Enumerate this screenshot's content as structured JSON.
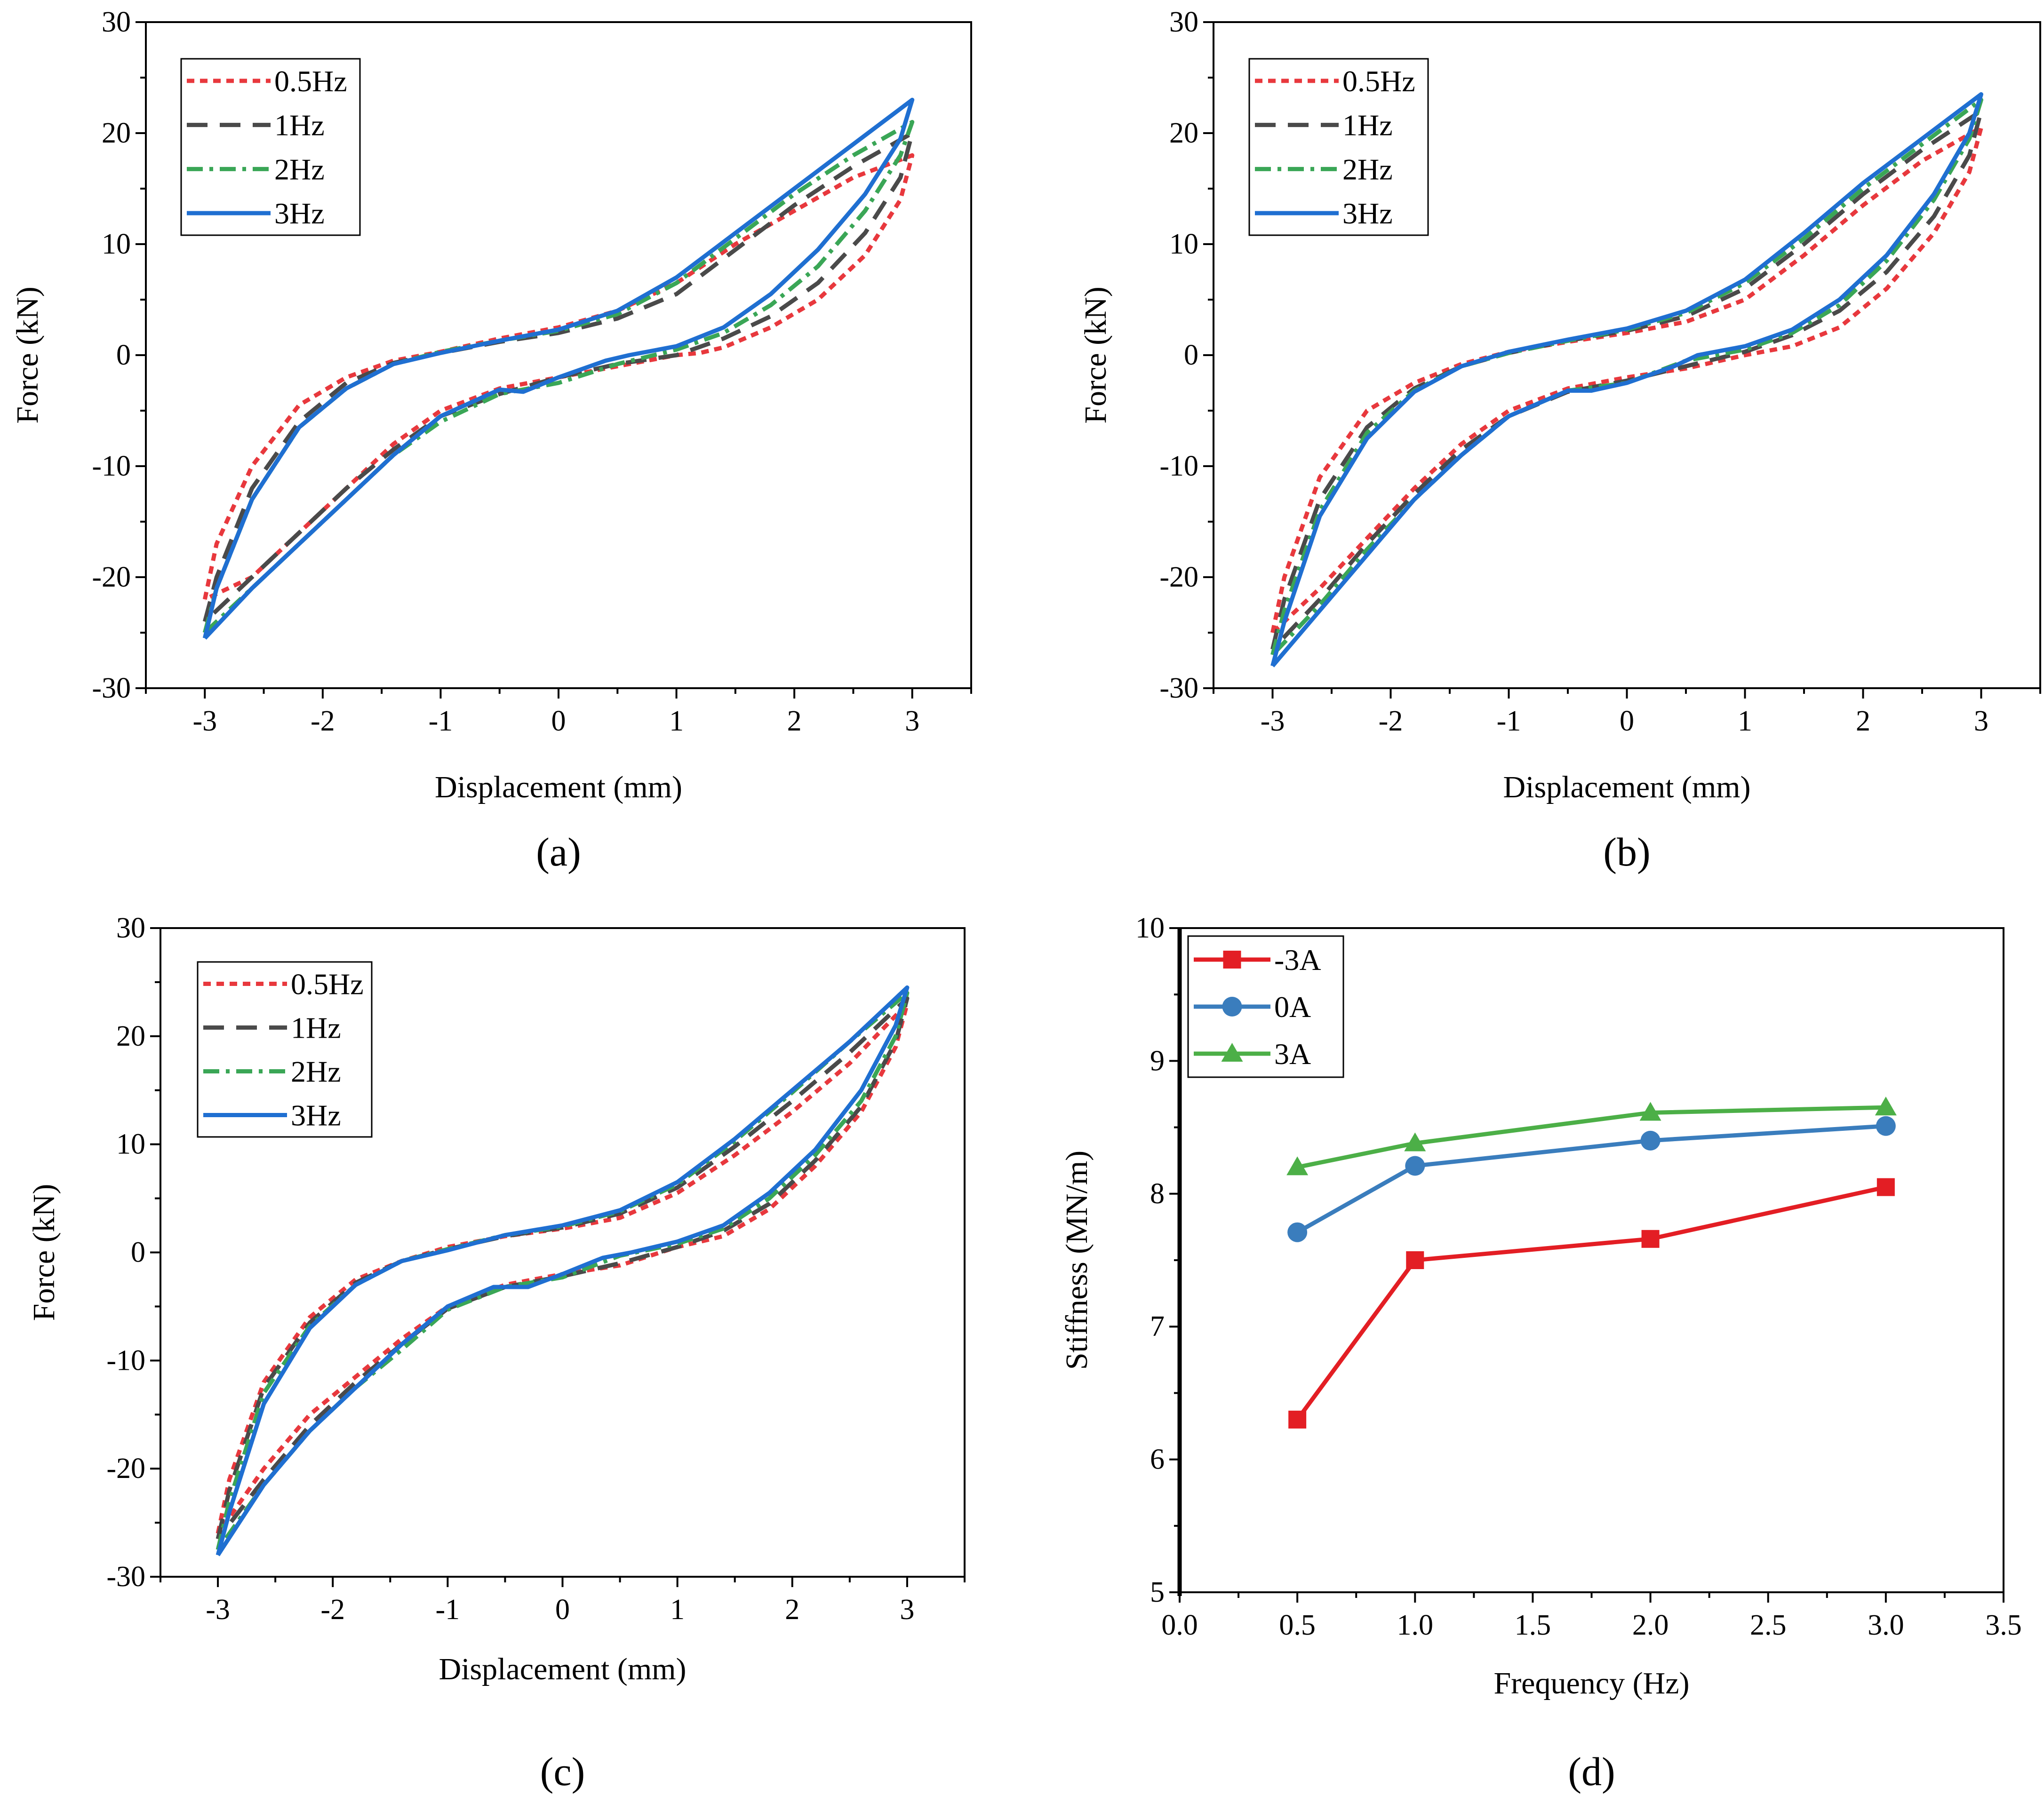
{
  "figure": {
    "panels": [
      "a",
      "b",
      "c",
      "d"
    ]
  },
  "chart_data": [
    {
      "id": "a",
      "type": "line",
      "panel_label": "(a)",
      "title": "",
      "xlabel": "Displacement (mm)",
      "ylabel": "Force (kN)",
      "xlim": [
        -3.5,
        3.5
      ],
      "ylim": [
        -30,
        30
      ],
      "xticks": [
        -3,
        -2,
        -1,
        0,
        1,
        2,
        3
      ],
      "xtick_labels": [
        "-3",
        "-2",
        "-1",
        "0",
        "1",
        "2",
        "3"
      ],
      "yticks": [
        -30,
        -20,
        -10,
        0,
        10,
        20,
        30
      ],
      "ytick_labels": [
        "-30",
        "-20",
        "-10",
        "0",
        "10",
        "20",
        "30"
      ],
      "grid": false,
      "legend_position": "top-left",
      "series": [
        {
          "name": "0.5Hz",
          "color": "#e8383d",
          "style": "dotted",
          "x": [
            -3,
            -2.9,
            -2.6,
            -2.2,
            -1.8,
            -1.4,
            -1,
            -0.5,
            0,
            0.5,
            1,
            1.5,
            2,
            2.5,
            3,
            2.9,
            2.6,
            2.2,
            1.8,
            1.4,
            1.2,
            1,
            0.5,
            0,
            -0.5,
            -1,
            -1.4,
            -1.8,
            -2.2,
            -2.6,
            -3
          ],
          "y": [
            -22,
            -17,
            -10,
            -4.5,
            -2,
            -0.5,
            0.3,
            1.5,
            2.5,
            4,
            6.5,
            10,
            13,
            16,
            18,
            14,
            9,
            5,
            2.5,
            0.7,
            0.2,
            0,
            -1,
            -2,
            -3,
            -5,
            -8,
            -12,
            -16,
            -20,
            -22
          ]
        },
        {
          "name": "1Hz",
          "color": "#4a4a4a",
          "style": "dashed",
          "x": [
            -3,
            -2.9,
            -2.6,
            -2.2,
            -1.8,
            -1.4,
            -1,
            -0.5,
            0,
            0.5,
            1,
            1.5,
            2,
            2.5,
            3,
            2.9,
            2.6,
            2.2,
            1.8,
            1.4,
            1,
            0.5,
            0,
            -0.5,
            -1,
            -1.4,
            -1.8,
            -2.2,
            -2.6,
            -3
          ],
          "y": [
            -24,
            -20,
            -12,
            -6,
            -2.5,
            -0.7,
            0.2,
            1.2,
            2,
            3.3,
            5.5,
            9.5,
            13.5,
            17,
            20,
            16,
            11,
            6.5,
            3.5,
            1.5,
            0,
            -0.8,
            -2,
            -3.5,
            -5.5,
            -8.5,
            -12,
            -16,
            -20,
            -24
          ]
        },
        {
          "name": "2Hz",
          "color": "#3aa656",
          "style": "dashdot",
          "x": [
            -3,
            -2.9,
            -2.6,
            -2.2,
            -1.8,
            -1.4,
            -1,
            -0.5,
            0,
            0.5,
            1,
            1.5,
            2,
            2.5,
            3,
            2.9,
            2.6,
            2.2,
            1.8,
            1.4,
            1,
            0.5,
            0,
            -0.5,
            -1,
            -1.4,
            -1.8,
            -2.2,
            -2.6,
            -3
          ],
          "y": [
            -25,
            -21,
            -13,
            -6.5,
            -3,
            -0.8,
            0.3,
            1.3,
            2.2,
            3.7,
            6.5,
            10.5,
            14.5,
            18,
            21,
            18,
            13,
            8,
            4.5,
            2,
            0.5,
            -0.8,
            -2.5,
            -3.5,
            -6,
            -9,
            -13,
            -17,
            -21,
            -25
          ]
        },
        {
          "name": "3Hz",
          "color": "#1f6fd1",
          "style": "solid",
          "x": [
            -3,
            -2.9,
            -2.6,
            -2.2,
            -1.8,
            -1.4,
            -1,
            -0.5,
            0,
            0.5,
            1,
            1.5,
            2,
            2.5,
            3,
            2.9,
            2.6,
            2.2,
            1.8,
            1.4,
            1,
            0.6,
            0.4,
            0,
            -0.3,
            -0.5,
            -1,
            -1.4,
            -1.8,
            -2.2,
            -2.6,
            -3
          ],
          "y": [
            -25.5,
            -21,
            -13,
            -6.5,
            -3,
            -0.8,
            0.2,
            1.3,
            2.3,
            4,
            7,
            11,
            15,
            19,
            23,
            19.5,
            14.5,
            9.5,
            5.5,
            2.5,
            0.8,
            0,
            -0.5,
            -2,
            -3.3,
            -3.1,
            -5.5,
            -9,
            -13,
            -17,
            -21,
            -25.5
          ]
        }
      ]
    },
    {
      "id": "b",
      "type": "line",
      "panel_label": "(b)",
      "title": "",
      "xlabel": "Displacement (mm)",
      "ylabel": "Force (kN)",
      "xlim": [
        -3.5,
        3.5
      ],
      "ylim": [
        -30,
        30
      ],
      "xticks": [
        -3,
        -2,
        -1,
        0,
        1,
        2,
        3
      ],
      "xtick_labels": [
        "-3",
        "-2",
        "-1",
        "0",
        "1",
        "2",
        "3"
      ],
      "yticks": [
        -30,
        -20,
        -10,
        0,
        10,
        20,
        30
      ],
      "ytick_labels": [
        "-30",
        "-20",
        "-10",
        "0",
        "10",
        "20",
        "30"
      ],
      "grid": false,
      "legend_position": "top-left",
      "series": [
        {
          "name": "0.5Hz",
          "color": "#e8383d",
          "style": "dotted",
          "x": [
            -3,
            -2.9,
            -2.6,
            -2.2,
            -1.8,
            -1.4,
            -1,
            -0.5,
            0,
            0.5,
            1,
            1.5,
            2,
            2.5,
            3,
            2.9,
            2.6,
            2.2,
            1.8,
            1.4,
            1,
            0.5,
            0,
            -0.5,
            -1,
            -1.4,
            -1.8,
            -2.2,
            -2.6,
            -3
          ],
          "y": [
            -25,
            -20,
            -11,
            -5,
            -2.5,
            -0.8,
            0.3,
            1.2,
            2,
            3,
            5,
            9,
            13.5,
            17.5,
            20.5,
            16.5,
            11,
            6,
            2.5,
            0.8,
            0,
            -1.2,
            -2,
            -3,
            -5,
            -8,
            -12,
            -16.5,
            -21,
            -25
          ]
        },
        {
          "name": "1Hz",
          "color": "#4a4a4a",
          "style": "dashed",
          "x": [
            -3,
            -2.9,
            -2.6,
            -2.2,
            -1.8,
            -1.4,
            -1,
            -0.5,
            0,
            0.5,
            1,
            1.5,
            2,
            2.5,
            3,
            2.9,
            2.6,
            2.2,
            1.8,
            1.4,
            1,
            0.5,
            0,
            -0.5,
            -1,
            -1.4,
            -1.8,
            -2.2,
            -2.6,
            -3
          ],
          "y": [
            -26.5,
            -22,
            -13,
            -6.5,
            -3,
            -1,
            0.2,
            1.3,
            2.2,
            3.5,
            6,
            10,
            14.5,
            18.5,
            22,
            18,
            12.5,
            7.5,
            4,
            1.8,
            0.3,
            -1,
            -2.3,
            -3.3,
            -5.5,
            -8.5,
            -12.5,
            -17,
            -22,
            -26.5
          ]
        },
        {
          "name": "2Hz",
          "color": "#3aa656",
          "style": "dashdot",
          "x": [
            -3,
            -2.9,
            -2.6,
            -2.2,
            -1.8,
            -1.4,
            -1,
            -0.5,
            0,
            0.5,
            1,
            1.5,
            2,
            2.5,
            3,
            2.9,
            2.6,
            2.2,
            1.8,
            1.4,
            1,
            0.5,
            0,
            -0.5,
            -1,
            -1.4,
            -1.8,
            -2.2,
            -2.6,
            -3
          ],
          "y": [
            -27,
            -23,
            -14,
            -7,
            -3.2,
            -1,
            0.2,
            1.3,
            2.3,
            3.8,
            6.5,
            10.5,
            15,
            19,
            23,
            19.5,
            14,
            8.5,
            4.5,
            2,
            0.5,
            -0.5,
            -2.5,
            -3.2,
            -5.5,
            -9,
            -13,
            -17.5,
            -22.5,
            -27
          ]
        },
        {
          "name": "3Hz",
          "color": "#1f6fd1",
          "style": "solid",
          "x": [
            -3,
            -2.9,
            -2.6,
            -2.2,
            -1.8,
            -1.4,
            -1,
            -0.5,
            0,
            0.5,
            1,
            1.5,
            2,
            2.5,
            3,
            2.9,
            2.6,
            2.2,
            1.8,
            1.4,
            1,
            0.6,
            0.4,
            0,
            -0.3,
            -0.5,
            -1,
            -1.4,
            -1.8,
            -2.2,
            -2.6,
            -3
          ],
          "y": [
            -28,
            -24,
            -14.5,
            -7.5,
            -3.3,
            -1,
            0.3,
            1.4,
            2.4,
            4,
            6.8,
            11,
            15.5,
            19.5,
            23.5,
            20,
            14.5,
            9,
            5,
            2.3,
            0.8,
            0,
            -1,
            -2.5,
            -3.2,
            -3.2,
            -5.5,
            -9,
            -13,
            -18,
            -23,
            -28
          ]
        }
      ]
    },
    {
      "id": "c",
      "type": "line",
      "panel_label": "(c)",
      "title": "",
      "xlabel": "Displacement (mm)",
      "ylabel": "Force (kN)",
      "xlim": [
        -3.5,
        3.5
      ],
      "ylim": [
        -30,
        30
      ],
      "xticks": [
        -3,
        -2,
        -1,
        0,
        1,
        2,
        3
      ],
      "xtick_labels": [
        "-3",
        "-2",
        "-1",
        "0",
        "1",
        "2",
        "3"
      ],
      "yticks": [
        -30,
        -20,
        -10,
        0,
        10,
        20,
        30
      ],
      "ytick_labels": [
        "-30",
        "-20",
        "-10",
        "0",
        "10",
        "20",
        "30"
      ],
      "grid": false,
      "legend_position": "top-left",
      "series": [
        {
          "name": "0.5Hz",
          "color": "#e8383d",
          "style": "dotted",
          "x": [
            -3,
            -2.9,
            -2.6,
            -2.2,
            -1.8,
            -1.4,
            -1,
            -0.5,
            0,
            0.5,
            1,
            1.5,
            2,
            2.5,
            3,
            2.9,
            2.6,
            2.2,
            1.8,
            1.4,
            1,
            0.5,
            0,
            -0.5,
            -1,
            -1.4,
            -1.8,
            -2.2,
            -2.6,
            -3
          ],
          "y": [
            -26,
            -21,
            -12,
            -6,
            -2.5,
            -0.8,
            0.5,
            1.5,
            2.2,
            3.2,
            5.5,
            9,
            13,
            17.5,
            23,
            19,
            13,
            8,
            4,
            1.5,
            0.5,
            -1.2,
            -2,
            -3,
            -5,
            -8,
            -11.5,
            -15,
            -20,
            -26
          ]
        },
        {
          "name": "1Hz",
          "color": "#4a4a4a",
          "style": "dashed",
          "x": [
            -3,
            -2.9,
            -2.6,
            -2.2,
            -1.8,
            -1.4,
            -1,
            -0.5,
            0,
            0.5,
            1,
            1.5,
            2,
            2.5,
            3,
            2.9,
            2.6,
            2.2,
            1.8,
            1.4,
            1,
            0.5,
            0,
            -0.5,
            -1,
            -1.4,
            -1.8,
            -2.2,
            -2.6,
            -3
          ],
          "y": [
            -26.5,
            -22,
            -12.5,
            -6.5,
            -2.8,
            -0.8,
            0.3,
            1.5,
            2.3,
            3.6,
            6,
            9.8,
            14,
            18.5,
            23.5,
            19.5,
            13.5,
            8.5,
            4.5,
            2,
            0.5,
            -1,
            -2.2,
            -3.2,
            -5.2,
            -8.5,
            -12,
            -16,
            -21,
            -26.5
          ]
        },
        {
          "name": "2Hz",
          "color": "#3aa656",
          "style": "dashdot",
          "x": [
            -3,
            -2.9,
            -2.6,
            -2.2,
            -1.8,
            -1.4,
            -1,
            -0.5,
            0,
            0.5,
            1,
            1.5,
            2,
            2.5,
            3,
            2.9,
            2.6,
            2.2,
            1.8,
            1.4,
            1,
            0.5,
            0,
            -0.5,
            -1,
            -1.4,
            -1.8,
            -2.2,
            -2.6,
            -3
          ],
          "y": [
            -27.5,
            -23,
            -13,
            -6.8,
            -3,
            -0.8,
            0.3,
            1.6,
            2.4,
            3.8,
            6.3,
            10.3,
            14.8,
            19.5,
            24,
            20,
            14,
            9,
            5,
            2.2,
            0.8,
            -0.3,
            -2.3,
            -3.2,
            -5.3,
            -9,
            -12.5,
            -16.5,
            -21.5,
            -27.5
          ]
        },
        {
          "name": "3Hz",
          "color": "#1f6fd1",
          "style": "solid",
          "x": [
            -3,
            -2.9,
            -2.6,
            -2.2,
            -1.8,
            -1.4,
            -1,
            -0.5,
            0,
            0.5,
            1,
            1.5,
            2,
            2.5,
            3,
            2.9,
            2.6,
            2.2,
            1.8,
            1.4,
            1,
            0.6,
            0.35,
            0,
            -0.3,
            -0.6,
            -1,
            -1.4,
            -1.8,
            -2.2,
            -2.6,
            -3
          ],
          "y": [
            -28,
            -24,
            -14,
            -7,
            -3,
            -0.8,
            0.2,
            1.6,
            2.5,
            3.9,
            6.5,
            10.5,
            15,
            19.5,
            24.5,
            21,
            15,
            9.5,
            5.5,
            2.5,
            1,
            0,
            -0.5,
            -2,
            -3.2,
            -3.2,
            -5,
            -8.5,
            -12.5,
            -16.5,
            -21.5,
            -28
          ]
        }
      ]
    },
    {
      "id": "d",
      "type": "line",
      "panel_label": "(d)",
      "title": "",
      "xlabel": "Frequency (Hz)",
      "ylabel": "Stiffness (MN/m)",
      "xlim": [
        0.0,
        3.5
      ],
      "ylim": [
        5,
        10
      ],
      "xticks": [
        0.0,
        0.5,
        1.0,
        1.5,
        2.0,
        2.5,
        3.0,
        3.5
      ],
      "xtick_labels": [
        "0.0",
        "0.5",
        "1.0",
        "1.5",
        "2.0",
        "2.5",
        "3.0",
        "3.5"
      ],
      "yticks": [
        5,
        6,
        7,
        8,
        9,
        10
      ],
      "ytick_labels": [
        "5",
        "6",
        "7",
        "8",
        "9",
        "10"
      ],
      "grid": false,
      "legend_position": "top-left",
      "x": [
        0.5,
        1.0,
        2.0,
        3.0
      ],
      "series": [
        {
          "name": "-3A",
          "color": "#e31e24",
          "marker": "square",
          "values": [
            6.3,
            7.5,
            7.66,
            8.05
          ]
        },
        {
          "name": "0A",
          "color": "#3a7dbd",
          "marker": "circle",
          "values": [
            7.71,
            8.21,
            8.4,
            8.51
          ]
        },
        {
          "name": "3A",
          "color": "#4caf47",
          "marker": "triangle",
          "values": [
            8.2,
            8.38,
            8.61,
            8.65
          ]
        }
      ]
    }
  ]
}
